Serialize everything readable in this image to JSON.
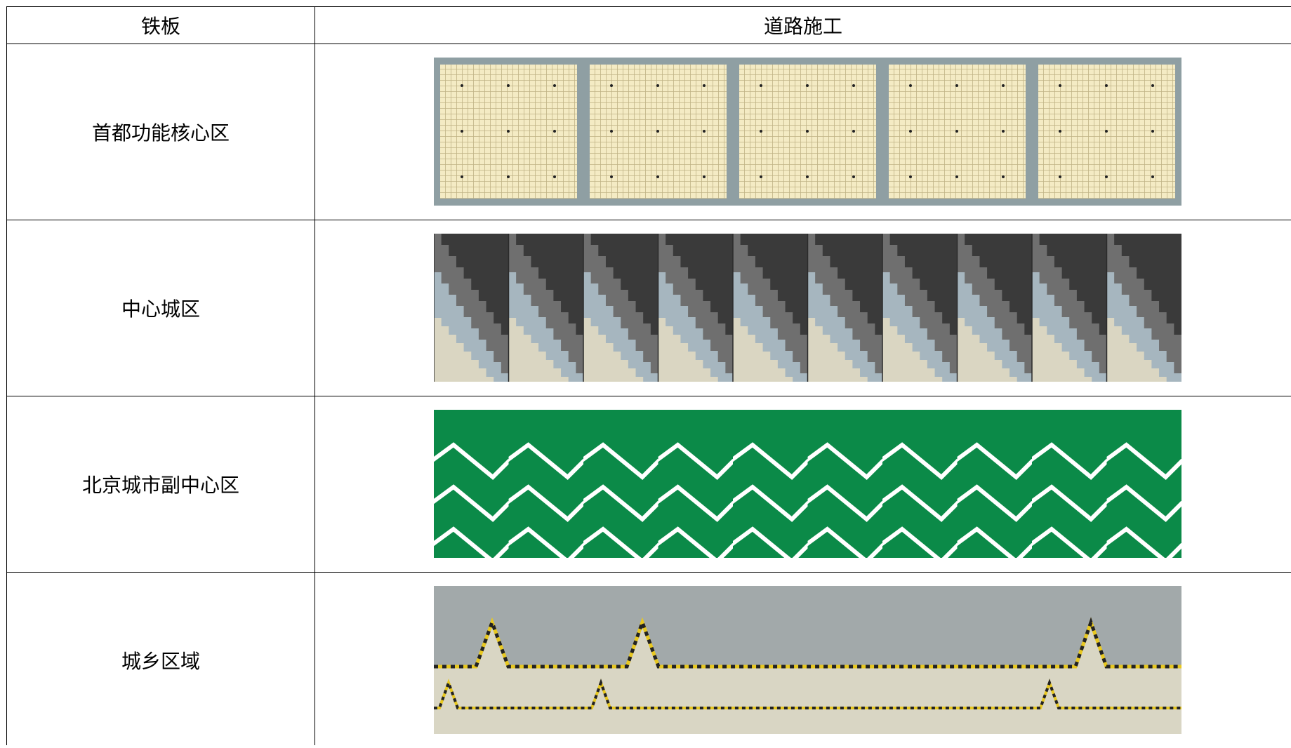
{
  "table": {
    "header": [
      "铁板",
      "道路施工"
    ],
    "rows": [
      [
        "首都功能核心区"
      ],
      [
        "中心城区"
      ],
      [
        "北京城市副中心区"
      ],
      [
        "城乡区域"
      ]
    ]
  }
}
